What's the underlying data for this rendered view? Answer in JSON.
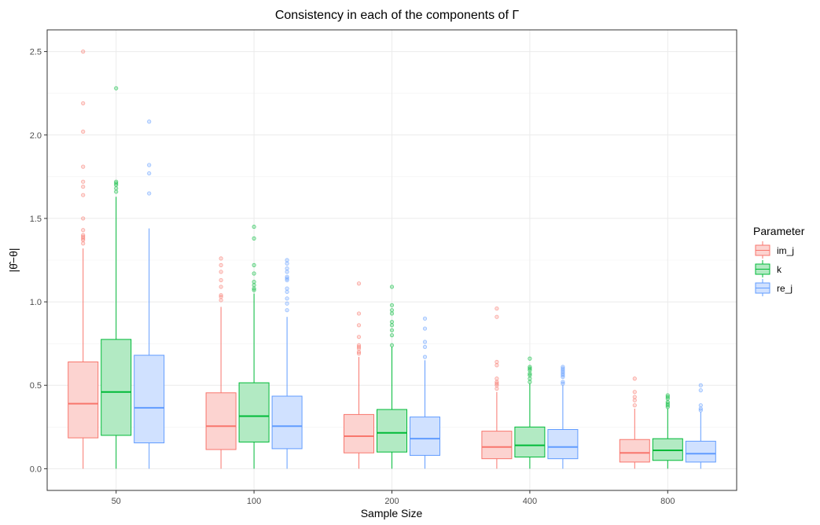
{
  "chart_data": {
    "type": "box",
    "title": "Consistency in each of the components of Γ",
    "xlabel": "Sample Size",
    "ylabel": "|θ̂−θ|",
    "categories": [
      "50",
      "100",
      "200",
      "400",
      "800"
    ],
    "ylim": [
      -0.13,
      2.63
    ],
    "yticks": [
      0.0,
      0.5,
      1.0,
      1.5,
      2.0,
      2.5
    ],
    "ytick_labels": [
      "0.0",
      "0.5",
      "1.0",
      "1.5",
      "2.0",
      "2.5"
    ],
    "grid": true,
    "legend": {
      "title": "Parameter",
      "position": "right"
    },
    "series": [
      {
        "name": "im_j",
        "color": "#F8766D",
        "fill": "#FCD3D0",
        "boxes": [
          {
            "min": 0.0,
            "q1": 0.185,
            "median": 0.39,
            "q3": 0.64,
            "max": 1.32,
            "outliers": [
              1.35,
              1.37,
              1.38,
              1.39,
              1.4,
              1.43,
              1.5,
              1.64,
              1.69,
              1.72,
              1.81,
              2.02,
              2.19,
              2.5
            ]
          },
          {
            "min": 0.0,
            "q1": 0.115,
            "median": 0.255,
            "q3": 0.455,
            "max": 0.97,
            "outliers": [
              1.01,
              1.03,
              1.04,
              1.09,
              1.13,
              1.18,
              1.22,
              1.26
            ]
          },
          {
            "min": 0.0,
            "q1": 0.095,
            "median": 0.195,
            "q3": 0.325,
            "max": 0.67,
            "outliers": [
              0.69,
              0.7,
              0.72,
              0.73,
              0.74,
              0.79,
              0.86,
              0.93,
              1.11
            ]
          },
          {
            "min": 0.0,
            "q1": 0.06,
            "median": 0.13,
            "q3": 0.225,
            "max": 0.46,
            "outliers": [
              0.48,
              0.5,
              0.51,
              0.52,
              0.54,
              0.62,
              0.64,
              0.91,
              0.96
            ]
          },
          {
            "min": 0.0,
            "q1": 0.04,
            "median": 0.095,
            "q3": 0.175,
            "max": 0.36,
            "outliers": [
              0.38,
              0.41,
              0.43,
              0.46,
              0.54
            ]
          }
        ]
      },
      {
        "name": "k",
        "color": "#00BA38",
        "fill": "#B2EAC3",
        "boxes": [
          {
            "min": 0.0,
            "q1": 0.2,
            "median": 0.46,
            "q3": 0.775,
            "max": 1.63,
            "outliers": [
              1.66,
              1.68,
              1.7,
              1.71,
              1.72,
              2.28
            ]
          },
          {
            "min": 0.0,
            "q1": 0.16,
            "median": 0.315,
            "q3": 0.515,
            "max": 1.05,
            "outliers": [
              1.07,
              1.08,
              1.1,
              1.12,
              1.17,
              1.22,
              1.38,
              1.45
            ]
          },
          {
            "min": 0.0,
            "q1": 0.1,
            "median": 0.215,
            "q3": 0.355,
            "max": 0.73,
            "outliers": [
              0.74,
              0.8,
              0.83,
              0.86,
              0.88,
              0.93,
              0.95,
              0.98,
              1.09
            ]
          },
          {
            "min": 0.0,
            "q1": 0.07,
            "median": 0.14,
            "q3": 0.25,
            "max": 0.51,
            "outliers": [
              0.52,
              0.54,
              0.56,
              0.57,
              0.59,
              0.6,
              0.61,
              0.66
            ]
          },
          {
            "min": 0.0,
            "q1": 0.05,
            "median": 0.11,
            "q3": 0.18,
            "max": 0.36,
            "outliers": [
              0.37,
              0.38,
              0.39,
              0.4,
              0.42,
              0.43,
              0.44
            ]
          }
        ]
      },
      {
        "name": "re_j",
        "color": "#619CFF",
        "fill": "#D0E1FF",
        "boxes": [
          {
            "min": 0.0,
            "q1": 0.155,
            "median": 0.365,
            "q3": 0.68,
            "max": 1.44,
            "outliers": [
              1.65,
              1.77,
              1.82,
              2.08
            ]
          },
          {
            "min": 0.0,
            "q1": 0.12,
            "median": 0.255,
            "q3": 0.435,
            "max": 0.91,
            "outliers": [
              0.95,
              0.99,
              1.02,
              1.06,
              1.08,
              1.13,
              1.14,
              1.15,
              1.18,
              1.2,
              1.23,
              1.25
            ]
          },
          {
            "min": 0.0,
            "q1": 0.08,
            "median": 0.18,
            "q3": 0.31,
            "max": 0.65,
            "outliers": [
              0.67,
              0.73,
              0.76,
              0.84,
              0.9
            ]
          },
          {
            "min": 0.0,
            "q1": 0.06,
            "median": 0.13,
            "q3": 0.235,
            "max": 0.5,
            "outliers": [
              0.51,
              0.52,
              0.55,
              0.56,
              0.57,
              0.58,
              0.59,
              0.6,
              0.61
            ]
          },
          {
            "min": 0.0,
            "q1": 0.04,
            "median": 0.09,
            "q3": 0.165,
            "max": 0.34,
            "outliers": [
              0.35,
              0.36,
              0.38,
              0.47,
              0.5
            ]
          }
        ]
      }
    ]
  }
}
